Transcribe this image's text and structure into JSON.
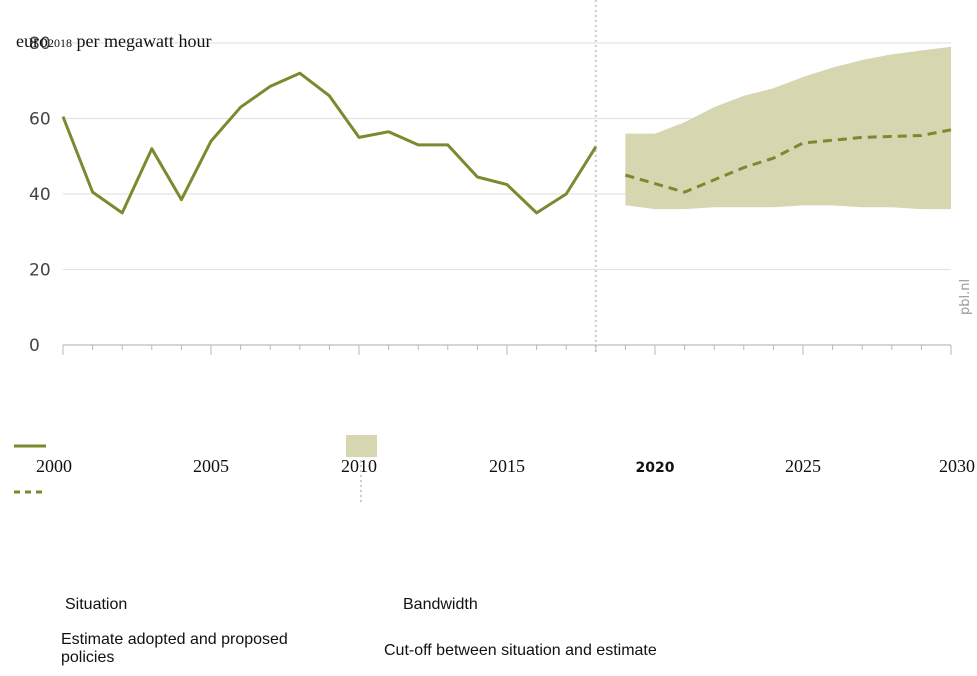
{
  "chart_data": {
    "type": "line",
    "ylabel_main": "euro",
    "ylabel_sub": "2018",
    "ylabel_tail": " per megawatt hour",
    "ylim": [
      0,
      80
    ],
    "yticks": [
      0,
      20,
      40,
      60,
      80
    ],
    "xlim": [
      2000,
      2030
    ],
    "xtick_labels": [
      {
        "x": 2000,
        "label": "2000"
      },
      {
        "x": 2005,
        "label": "2005"
      },
      {
        "x": 2010,
        "label": "2010"
      },
      {
        "x": 2015,
        "label": "2015"
      },
      {
        "x": 2020,
        "label": "2020"
      },
      {
        "x": 2025,
        "label": "2025"
      },
      {
        "x": 2030,
        "label": "2030"
      }
    ],
    "cutoff_x": 2018,
    "series": [
      {
        "name": "Situation",
        "style": "solid",
        "color": "#7a8a2e",
        "x": [
          2000,
          2001,
          2002,
          2003,
          2004,
          2005,
          2006,
          2007,
          2008,
          2009,
          2010,
          2011,
          2012,
          2013,
          2014,
          2015,
          2016,
          2017,
          2018
        ],
        "y": [
          60.5,
          40.5,
          35,
          52,
          38.5,
          54,
          63,
          68.5,
          72,
          66,
          55,
          56.5,
          53,
          53,
          44.5,
          42.5,
          35,
          40,
          52.5
        ]
      },
      {
        "name": "Estimate adopted and proposed policies",
        "style": "dashed",
        "color": "#7a8a2e",
        "x": [
          2019,
          2021,
          2023,
          2024,
          2025,
          2027,
          2029,
          2030
        ],
        "y": [
          45,
          40.5,
          47,
          49.5,
          53.5,
          55,
          55.5,
          57
        ]
      }
    ],
    "band": {
      "name": "Bandwidth",
      "color": "#d6d6b1",
      "x": [
        2019,
        2020,
        2021,
        2022,
        2023,
        2024,
        2025,
        2026,
        2027,
        2028,
        2029,
        2030
      ],
      "upper": [
        56,
        56,
        59,
        63,
        66,
        68,
        71,
        73.5,
        75.5,
        77,
        78,
        79
      ],
      "lower": [
        37,
        36,
        36,
        36.5,
        36.5,
        36.5,
        37,
        37,
        36.5,
        36.5,
        36,
        36
      ]
    },
    "grid": true,
    "watermark": "pbl.nl"
  },
  "legend": {
    "situation": "Situation",
    "estimate": "Estimate adopted and proposed policies",
    "bandwidth": "Bandwidth",
    "cutoff": "Cut-off between situation and estimate"
  },
  "colors": {
    "line": "#7a8a2e",
    "band": "#d6d6b1",
    "grid": "#e4e4e4",
    "cutoff": "#cccccc"
  }
}
